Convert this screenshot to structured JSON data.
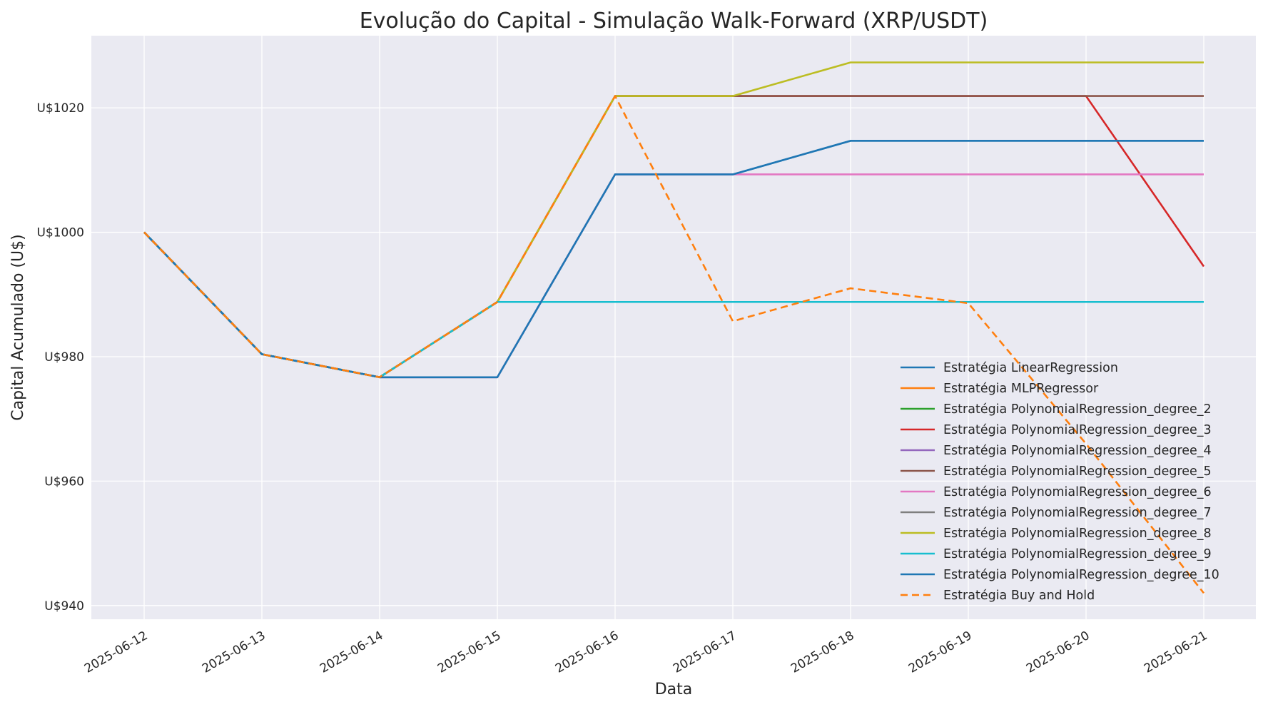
{
  "chart_data": {
    "type": "line",
    "title": "Evolução do Capital - Simulação Walk-Forward (XRP/USDT)",
    "xlabel": "Data",
    "ylabel": "Capital Acumulado (U$)",
    "x": [
      "2025-06-12",
      "2025-06-13",
      "2025-06-14",
      "2025-06-15",
      "2025-06-16",
      "2025-06-17",
      "2025-06-18",
      "2025-06-19",
      "2025-06-20",
      "2025-06-21"
    ],
    "yticks": [
      940,
      960,
      980,
      1000,
      1020
    ],
    "ytick_labels": [
      "U$940",
      "U$960",
      "U$980",
      "U$1000",
      "U$1020"
    ],
    "ylim": [
      937.8,
      1031.6
    ],
    "grid": true,
    "legend_position": "lower-right",
    "series": [
      {
        "name": "Estratégia LinearRegression",
        "color": "#1f77b4",
        "dash": "solid",
        "values": [
          1000,
          980.4,
          976.7,
          976.7,
          1009.3,
          1009.3,
          1014.7,
          1014.7,
          1014.7,
          1014.7
        ]
      },
      {
        "name": "Estratégia MLPRegressor",
        "color": "#ff7f0e",
        "dash": "solid",
        "values": [
          1000,
          980.4,
          976.7,
          988.8,
          988.8,
          988.8,
          988.8,
          988.8,
          988.8,
          988.8
        ]
      },
      {
        "name": "Estratégia PolynomialRegression_degree_2",
        "color": "#2ca02c",
        "dash": "solid",
        "values": [
          1000,
          980.4,
          976.7,
          988.8,
          988.8,
          988.8,
          988.8,
          988.8,
          988.8,
          988.8
        ]
      },
      {
        "name": "Estratégia PolynomialRegression_degree_3",
        "color": "#d62728",
        "dash": "solid",
        "values": [
          1000,
          980.4,
          976.7,
          988.8,
          1021.9,
          1021.9,
          1021.9,
          1021.9,
          1021.9,
          994.5
        ]
      },
      {
        "name": "Estratégia PolynomialRegression_degree_4",
        "color": "#9467bd",
        "dash": "solid",
        "values": [
          1000,
          980.4,
          976.7,
          988.8,
          988.8,
          988.8,
          988.8,
          988.8,
          988.8,
          988.8
        ]
      },
      {
        "name": "Estratégia PolynomialRegression_degree_5",
        "color": "#8c564b",
        "dash": "solid",
        "values": [
          1000,
          980.4,
          976.7,
          988.8,
          1021.9,
          1021.9,
          1021.9,
          1021.9,
          1021.9,
          1021.9
        ]
      },
      {
        "name": "Estratégia PolynomialRegression_degree_6",
        "color": "#e377c2",
        "dash": "solid",
        "values": [
          1000,
          980.4,
          976.7,
          976.7,
          1009.3,
          1009.3,
          1009.3,
          1009.3,
          1009.3,
          1009.3
        ]
      },
      {
        "name": "Estratégia PolynomialRegression_degree_7",
        "color": "#7f7f7f",
        "dash": "solid",
        "values": [
          1000,
          980.4,
          976.7,
          988.8,
          988.8,
          988.8,
          988.8,
          988.8,
          988.8,
          988.8
        ]
      },
      {
        "name": "Estratégia PolynomialRegression_degree_8",
        "color": "#bcbd22",
        "dash": "solid",
        "values": [
          1000,
          980.4,
          976.7,
          988.8,
          1021.9,
          1021.9,
          1027.3,
          1027.3,
          1027.3,
          1027.3
        ]
      },
      {
        "name": "Estratégia PolynomialRegression_degree_9",
        "color": "#17becf",
        "dash": "solid",
        "values": [
          1000,
          980.4,
          976.7,
          988.8,
          988.8,
          988.8,
          988.8,
          988.8,
          988.8,
          988.8
        ]
      },
      {
        "name": "Estratégia PolynomialRegression_degree_10",
        "color": "#1f77b4",
        "dash": "solid",
        "values": [
          1000,
          980.4,
          976.7,
          976.7,
          1009.3,
          1009.3,
          1014.7,
          1014.7,
          1014.7,
          1014.7
        ]
      },
      {
        "name": "Estratégia Buy and Hold",
        "color": "#ff7f0e",
        "dash": "dashed",
        "values": [
          1000,
          980.4,
          976.7,
          988.8,
          1021.9,
          985.7,
          991.0,
          988.6,
          966.0,
          942.0
        ]
      }
    ]
  }
}
